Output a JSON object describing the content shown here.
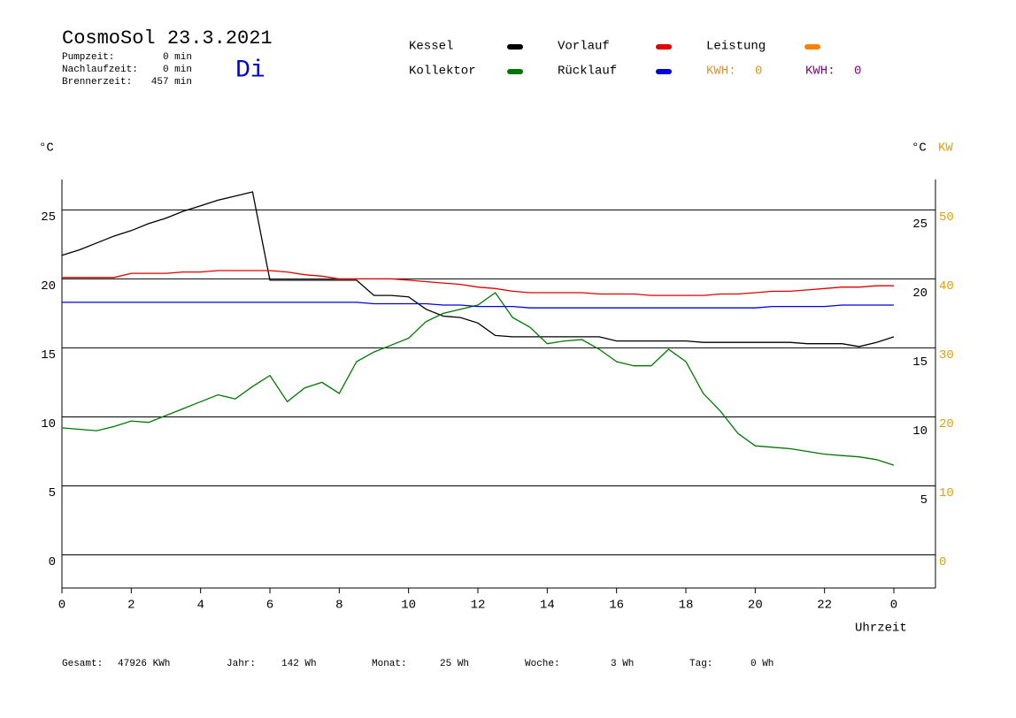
{
  "header": {
    "title": "CosmoSol 23.3.2021",
    "weekday": "Di",
    "stats": [
      {
        "label": "Pumpzeit:",
        "value": "0 min"
      },
      {
        "label": "Nachlaufzeit:",
        "value": "0 min"
      },
      {
        "label": "Brennerzeit:",
        "value": "457 min"
      }
    ],
    "kwh": [
      {
        "label": "KWH:",
        "value": 0,
        "color": "#e09020"
      },
      {
        "label": "KWH:",
        "value": 0,
        "color": "#800080"
      }
    ]
  },
  "chart_data": {
    "type": "line",
    "x": [
      0,
      0.5,
      1,
      1.5,
      2,
      2.5,
      3,
      3.5,
      4,
      4.5,
      5,
      5.5,
      6,
      6.5,
      7,
      7.5,
      8,
      8.5,
      9,
      9.5,
      10,
      10.5,
      11,
      11.5,
      12,
      12.5,
      13,
      13.5,
      14,
      14.5,
      15,
      15.5,
      16,
      16.5,
      17,
      17.5,
      18,
      18.5,
      19,
      19.5,
      20,
      20.5,
      21,
      21.5,
      22,
      22.5,
      23,
      23.5,
      24
    ],
    "series": [
      {
        "name": "Kessel",
        "color": "#000000",
        "values": [
          21.7,
          22.1,
          22.6,
          23.1,
          23.5,
          24.0,
          24.4,
          24.9,
          25.3,
          25.7,
          26.0,
          26.3,
          19.9,
          19.9,
          19.9,
          19.9,
          19.9,
          19.9,
          18.8,
          18.8,
          18.7,
          17.8,
          17.3,
          17.2,
          16.8,
          15.9,
          15.8,
          15.8,
          15.8,
          15.8,
          15.8,
          15.8,
          15.5,
          15.5,
          15.5,
          15.5,
          15.5,
          15.4,
          15.4,
          15.4,
          15.4,
          15.4,
          15.4,
          15.3,
          15.3,
          15.3,
          15.1,
          15.4,
          15.8
        ]
      },
      {
        "name": "Kollektor",
        "color": "#007700",
        "values": [
          9.2,
          9.1,
          9.0,
          9.3,
          9.7,
          9.6,
          10.1,
          10.6,
          11.1,
          11.6,
          11.3,
          12.2,
          13.0,
          11.1,
          12.1,
          12.5,
          11.7,
          14.0,
          14.7,
          15.2,
          15.7,
          16.9,
          17.5,
          17.8,
          18.1,
          19.0,
          17.2,
          16.5,
          15.3,
          15.5,
          15.6,
          14.9,
          14.0,
          13.7,
          13.7,
          14.9,
          14.0,
          11.7,
          10.4,
          8.8,
          7.9,
          7.8,
          7.7,
          7.5,
          7.3,
          7.2,
          7.1,
          6.9,
          6.5
        ]
      },
      {
        "name": "Vorlauf",
        "color": "#e00000",
        "values": [
          20.1,
          20.1,
          20.1,
          20.1,
          20.4,
          20.4,
          20.4,
          20.5,
          20.5,
          20.6,
          20.6,
          20.6,
          20.6,
          20.5,
          20.3,
          20.2,
          20.0,
          20.0,
          20.0,
          20.0,
          19.9,
          19.8,
          19.7,
          19.6,
          19.4,
          19.3,
          19.1,
          19.0,
          19.0,
          19.0,
          19.0,
          18.9,
          18.9,
          18.9,
          18.8,
          18.8,
          18.8,
          18.8,
          18.9,
          18.9,
          19.0,
          19.1,
          19.1,
          19.2,
          19.3,
          19.4,
          19.4,
          19.5,
          19.5
        ]
      },
      {
        "name": "Rücklauf",
        "color": "#0000e0",
        "values": [
          18.3,
          18.3,
          18.3,
          18.3,
          18.3,
          18.3,
          18.3,
          18.3,
          18.3,
          18.3,
          18.3,
          18.3,
          18.3,
          18.3,
          18.3,
          18.3,
          18.3,
          18.3,
          18.2,
          18.2,
          18.2,
          18.2,
          18.1,
          18.1,
          18.0,
          18.0,
          18.0,
          17.9,
          17.9,
          17.9,
          17.9,
          17.9,
          17.9,
          17.9,
          17.9,
          17.9,
          17.9,
          17.9,
          17.9,
          17.9,
          17.9,
          18.0,
          18.0,
          18.0,
          18.0,
          18.1,
          18.1,
          18.1,
          18.1
        ]
      },
      {
        "name": "Leistung",
        "color": "#ff8000",
        "axis": "y3",
        "values": [
          null,
          null,
          null,
          null,
          null,
          null,
          null,
          null,
          null,
          null,
          null,
          null,
          null,
          null,
          null,
          null,
          null,
          null,
          null,
          null,
          null,
          null,
          null,
          null,
          null,
          null,
          null,
          null,
          null,
          null,
          null,
          null,
          null,
          null,
          null,
          null,
          null,
          null,
          null,
          null,
          null,
          null,
          null,
          null,
          null,
          null,
          null,
          null,
          null
        ]
      }
    ],
    "xlim": [
      0,
      25.2
    ],
    "xticks": [
      0,
      2,
      4,
      6,
      8,
      10,
      12,
      14,
      16,
      18,
      20,
      22,
      {
        "value": 24,
        "label": "0"
      }
    ],
    "xlabel": "Uhrzeit",
    "ylim": [
      -2.4,
      27.2
    ],
    "yticks": [
      0,
      5,
      10,
      15,
      20,
      25
    ],
    "y_unit": "°C",
    "y2lim": [
      -1.9,
      27.7
    ],
    "y2ticks": [
      5,
      10,
      15,
      20,
      25
    ],
    "y2_unit": "°C",
    "y3lim": [
      -4.8,
      54.4
    ],
    "y3ticks": [
      0,
      10,
      20,
      30,
      40,
      50
    ],
    "y3_unit": "KW",
    "y3_color": "#e0a000",
    "grid": true
  },
  "footer": [
    {
      "label": "Gesamt:",
      "value": "47926 KWh"
    },
    {
      "label": "Jahr:",
      "value": "142 Wh"
    },
    {
      "label": "Monat:",
      "value": "25 Wh"
    },
    {
      "label": "Woche:",
      "value": "3 Wh"
    },
    {
      "label": "Tag:",
      "value": "0 Wh"
    }
  ]
}
